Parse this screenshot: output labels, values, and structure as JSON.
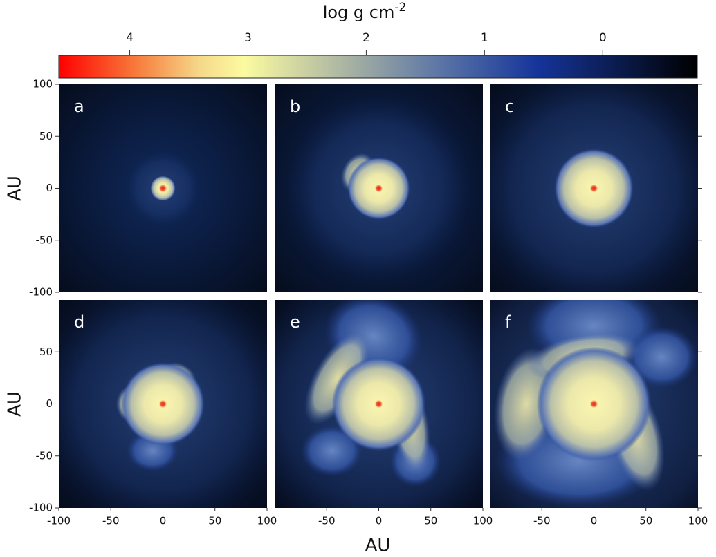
{
  "colorbar": {
    "title": "log g cm",
    "title_superscript": "-2",
    "lim": [
      4.6,
      -0.8
    ],
    "ticks": [
      4,
      3,
      2,
      1,
      0
    ]
  },
  "x_label": "AU",
  "y_labels": [
    "AU",
    "AU"
  ],
  "panels": [
    {
      "label": "a",
      "xlim": [
        -100,
        100
      ],
      "ylim": [
        -100,
        100
      ],
      "yticks": [
        100,
        50,
        0,
        -50,
        -100
      ]
    },
    {
      "label": "b",
      "xlim": [
        -100,
        100
      ],
      "ylim": [
        -100,
        100
      ]
    },
    {
      "label": "c",
      "xlim": [
        -100,
        100
      ],
      "ylim": [
        -100,
        100
      ]
    },
    {
      "label": "d",
      "xlim": [
        -100,
        100
      ],
      "ylim": [
        -100,
        100
      ],
      "yticks": [
        50,
        0,
        -50,
        -100
      ],
      "xticks": [
        -100,
        -50,
        0,
        50,
        100
      ]
    },
    {
      "label": "e",
      "xlim": [
        -100,
        100
      ],
      "ylim": [
        -100,
        100
      ],
      "xticks": [
        -50,
        0,
        50,
        100
      ]
    },
    {
      "label": "f",
      "xlim": [
        -100,
        100
      ],
      "ylim": [
        -100,
        100
      ],
      "xticks": [
        -50,
        0,
        50,
        100
      ]
    }
  ]
}
